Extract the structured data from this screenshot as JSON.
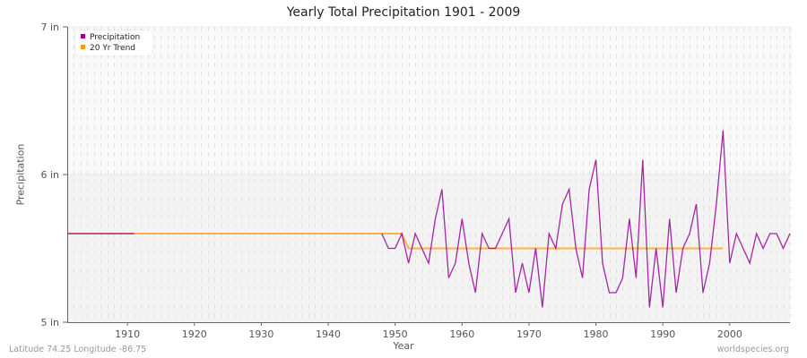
{
  "title": "Yearly Total Precipitation 1901 - 2009",
  "footer": {
    "location": "Latitude 74.25 Longitude -86.75",
    "source": "worldspecies.org"
  },
  "legend": [
    {
      "label": "Precipitation",
      "color": "#990099"
    },
    {
      "label": "20 Yr Trend",
      "color": "#ff9900"
    }
  ],
  "chart_data": {
    "type": "line",
    "title": "Yearly Total Precipitation 1901 - 2009",
    "xlabel": "Year",
    "ylabel": "Precipitation",
    "xlim": [
      1901,
      2009
    ],
    "ylim": [
      5,
      7
    ],
    "x_ticks": [
      1910,
      1920,
      1930,
      1940,
      1950,
      1960,
      1970,
      1980,
      1990,
      2000
    ],
    "y_ticks": [
      {
        "value": 5,
        "label": "5 in"
      },
      {
        "value": 6,
        "label": "6 in"
      },
      {
        "value": 7,
        "label": "7 in"
      }
    ],
    "grid": true,
    "legend_position": "top-left",
    "series": [
      {
        "name": "Precipitation",
        "color": "#990099",
        "segments": [
          {
            "x": [
              1901,
              1902,
              1903,
              1904,
              1905,
              1906,
              1907,
              1908,
              1909,
              1910,
              1911
            ],
            "y": [
              5.6,
              5.6,
              5.6,
              5.6,
              5.6,
              5.6,
              5.6,
              5.6,
              5.6,
              5.6,
              5.6
            ]
          },
          {
            "x": [
              1948,
              1949,
              1950,
              1951,
              1952,
              1953,
              1954,
              1955,
              1956,
              1957,
              1958,
              1959,
              1960,
              1961,
              1962,
              1963,
              1964,
              1965,
              1966,
              1967,
              1968,
              1969,
              1970,
              1971,
              1972,
              1973,
              1974,
              1975,
              1976,
              1977,
              1978,
              1979,
              1980,
              1981,
              1982,
              1983,
              1984,
              1985,
              1986,
              1987,
              1988,
              1989,
              1990,
              1991,
              1992,
              1993,
              1994,
              1995,
              1996,
              1997,
              1998,
              1999,
              2000,
              2001,
              2002,
              2003,
              2004,
              2005,
              2006,
              2007,
              2008,
              2009
            ],
            "y": [
              5.6,
              5.5,
              5.5,
              5.6,
              5.4,
              5.6,
              5.5,
              5.4,
              5.7,
              5.9,
              5.3,
              5.4,
              5.7,
              5.4,
              5.2,
              5.6,
              5.5,
              5.5,
              5.6,
              5.7,
              5.2,
              5.4,
              5.2,
              5.5,
              5.1,
              5.6,
              5.5,
              5.8,
              5.9,
              5.5,
              5.3,
              5.9,
              6.1,
              5.4,
              5.2,
              5.2,
              5.3,
              5.7,
              5.3,
              6.1,
              5.1,
              5.5,
              5.1,
              5.7,
              5.2,
              5.5,
              5.6,
              5.8,
              5.2,
              5.4,
              5.8,
              6.3,
              5.4,
              5.6,
              5.5,
              5.4,
              5.6,
              5.5,
              5.6,
              5.6,
              5.5,
              5.6
            ]
          }
        ]
      },
      {
        "name": "20 Yr Trend",
        "color": "#ff9900",
        "segments": [
          {
            "x": [
              1901,
              1951,
              1952,
              1999
            ],
            "y": [
              5.6,
              5.6,
              5.5,
              5.5
            ]
          }
        ]
      }
    ]
  }
}
